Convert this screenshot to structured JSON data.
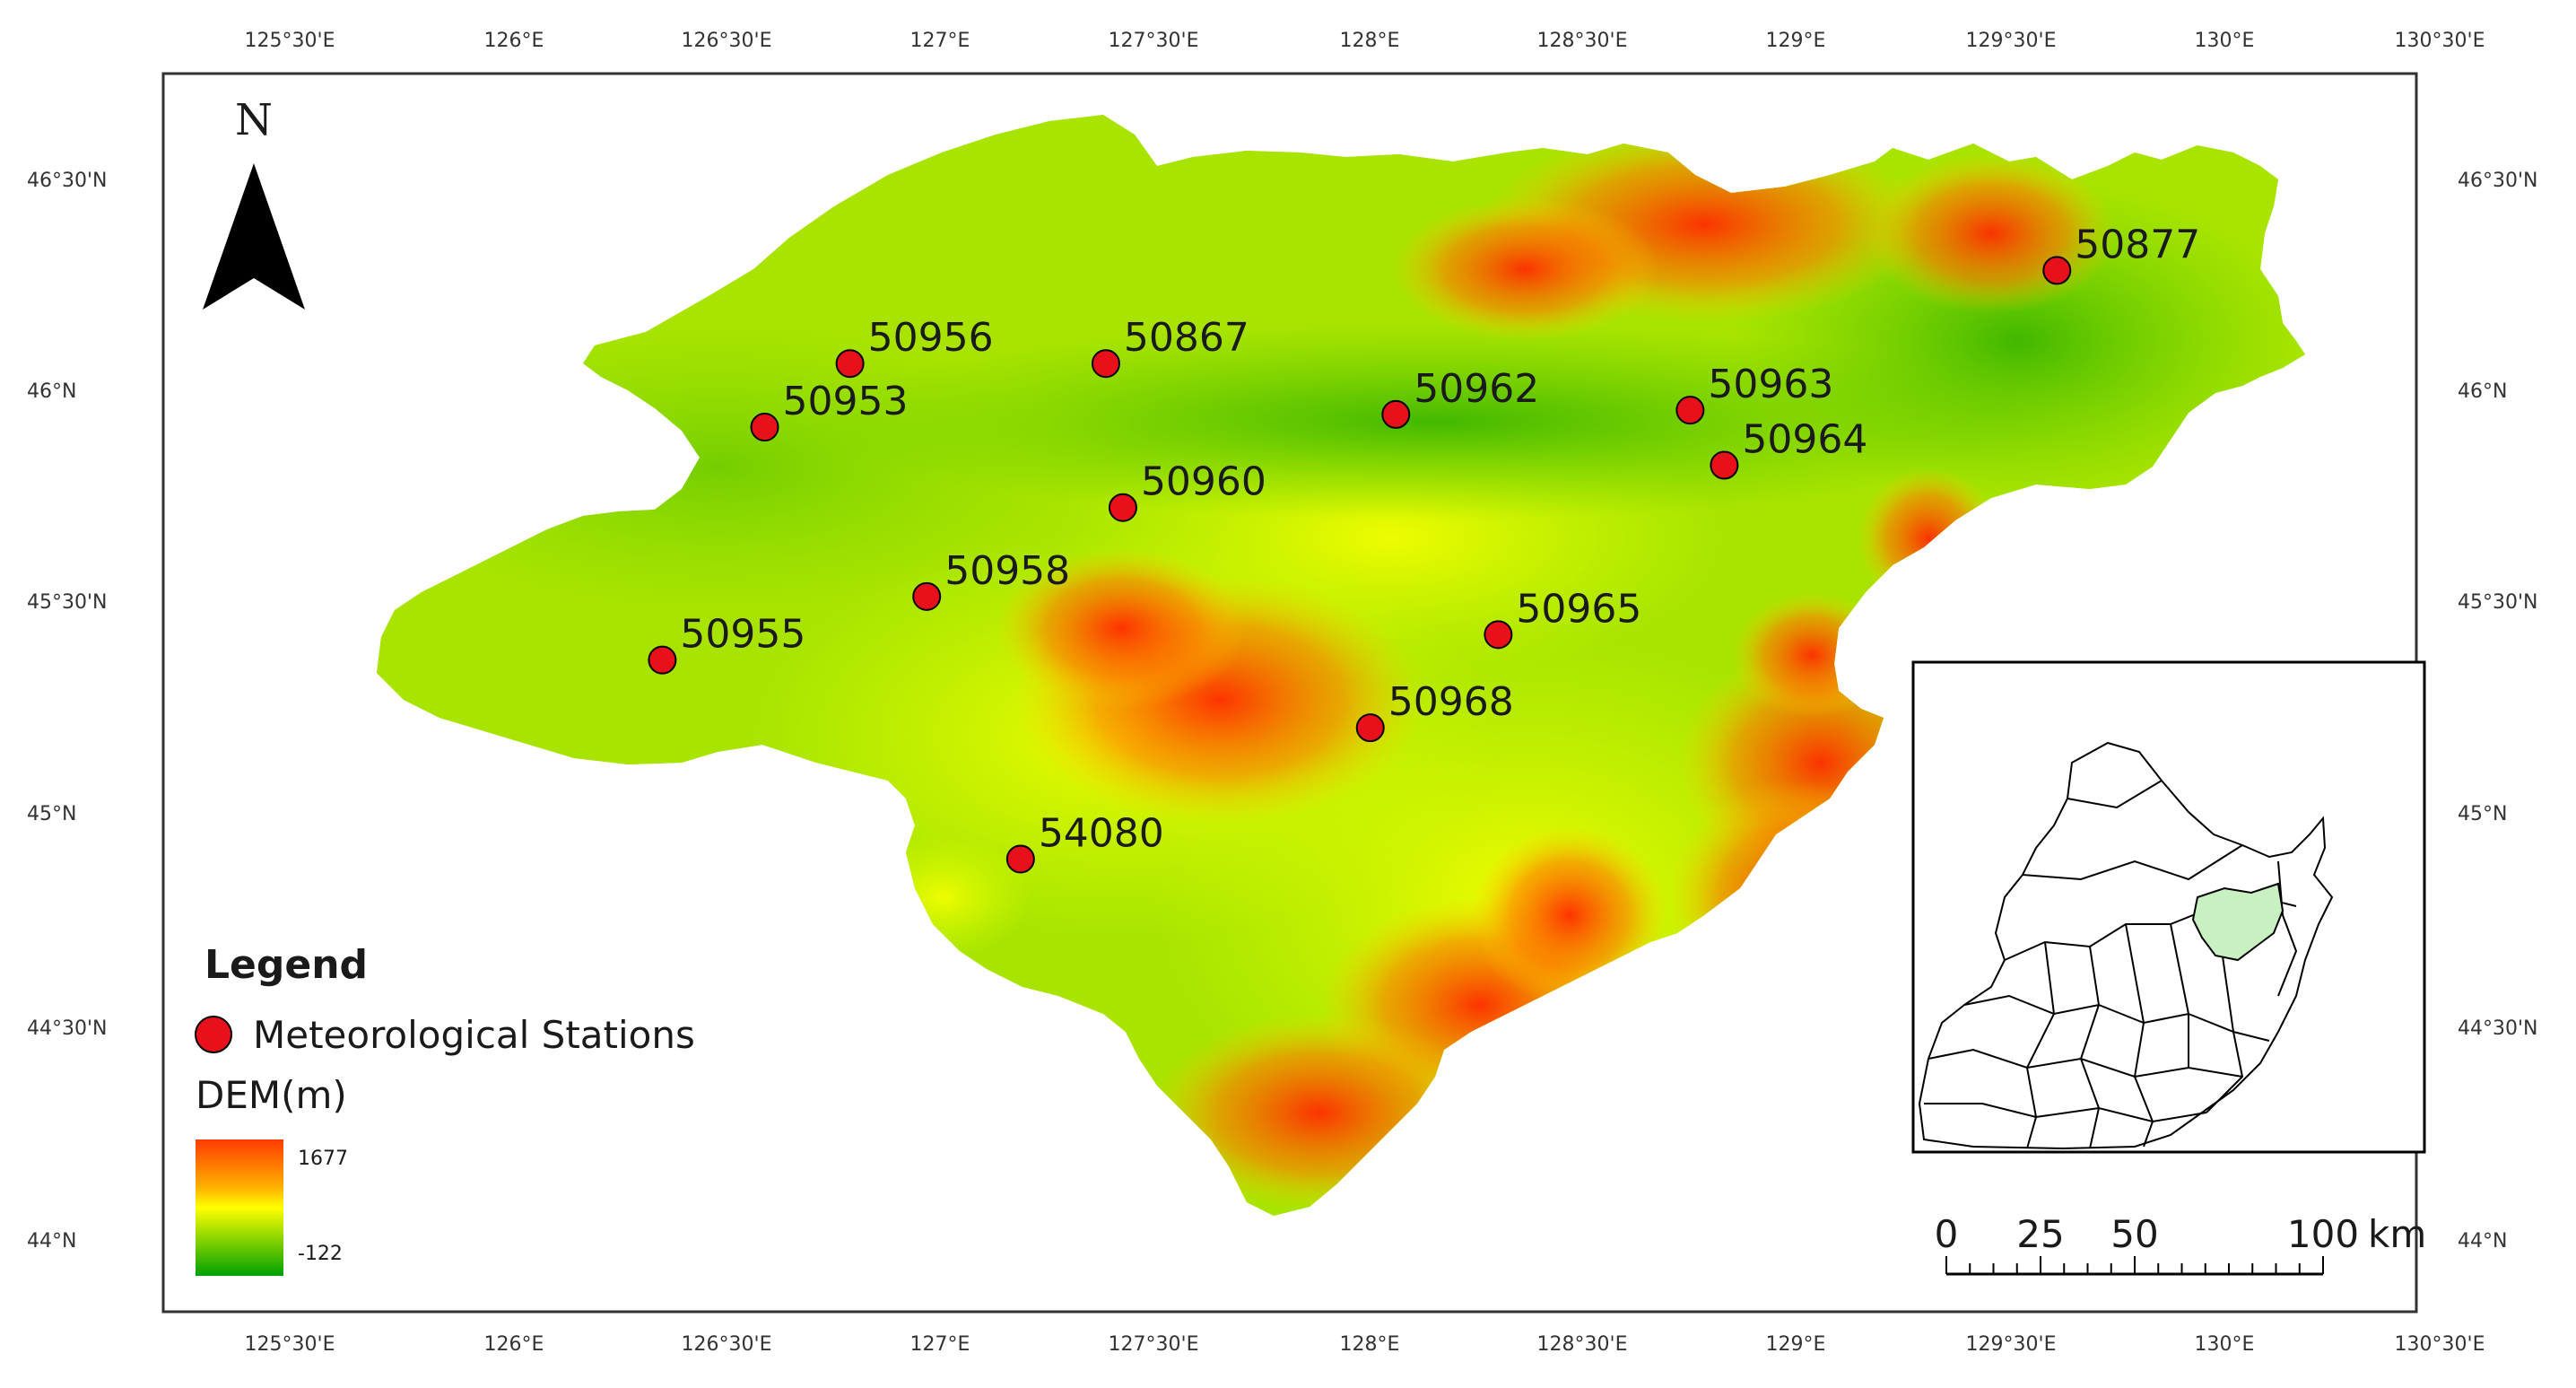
{
  "axes": {
    "top_labels": [
      "125°30'E",
      "126°E",
      "126°30'E",
      "127°E",
      "127°30'E",
      "128°E",
      "128°30'E",
      "129°E",
      "129°30'E",
      "130°E",
      "130°30'E"
    ],
    "bottom_labels": [
      "125°30'E",
      "126°E",
      "126°30'E",
      "127°E",
      "127°30'E",
      "128°E",
      "128°30'E",
      "129°E",
      "129°30'E",
      "130°E",
      "130°30'E"
    ],
    "left_labels": [
      "46°30'N",
      "46°N",
      "45°30'N",
      "45°N",
      "44°30'N",
      "44°N"
    ],
    "right_labels": [
      "46°30'N",
      "46°N",
      "45°30'N",
      "45°N",
      "44°30'N",
      "44°N"
    ]
  },
  "north_arrow": {
    "label": "N",
    "icon": "north-arrow-icon"
  },
  "stations": [
    {
      "id": "50877",
      "lon": 129.58,
      "lat": 46.3
    },
    {
      "id": "50956",
      "lon": 126.75,
      "lat": 46.08
    },
    {
      "id": "50867",
      "lon": 127.35,
      "lat": 46.08
    },
    {
      "id": "50953",
      "lon": 126.55,
      "lat": 45.93
    },
    {
      "id": "50962",
      "lon": 128.03,
      "lat": 45.96
    },
    {
      "id": "50963",
      "lon": 128.72,
      "lat": 45.97
    },
    {
      "id": "50964",
      "lon": 128.8,
      "lat": 45.84
    },
    {
      "id": "50960",
      "lon": 127.39,
      "lat": 45.74
    },
    {
      "id": "50958",
      "lon": 126.93,
      "lat": 45.53
    },
    {
      "id": "50965",
      "lon": 128.27,
      "lat": 45.44
    },
    {
      "id": "50955",
      "lon": 126.31,
      "lat": 45.38
    },
    {
      "id": "50968",
      "lon": 127.97,
      "lat": 45.22
    },
    {
      "id": "54080",
      "lon": 127.15,
      "lat": 44.91
    }
  ],
  "legend": {
    "title": "Legend",
    "stations_label": "Meteorological Stations",
    "dem_label": "DEM(m)",
    "dem_max": "1677",
    "dem_min": "-122"
  },
  "scale_bar": {
    "labels": [
      "0",
      "25",
      "50",
      "100"
    ],
    "unit": "km"
  },
  "colors": {
    "station_fill": "#e8101a",
    "dem_high": "#ff3b00",
    "dem_mid": "#ffff00",
    "dem_low": "#00a800",
    "inset_highlight": "#c8f0c0"
  }
}
